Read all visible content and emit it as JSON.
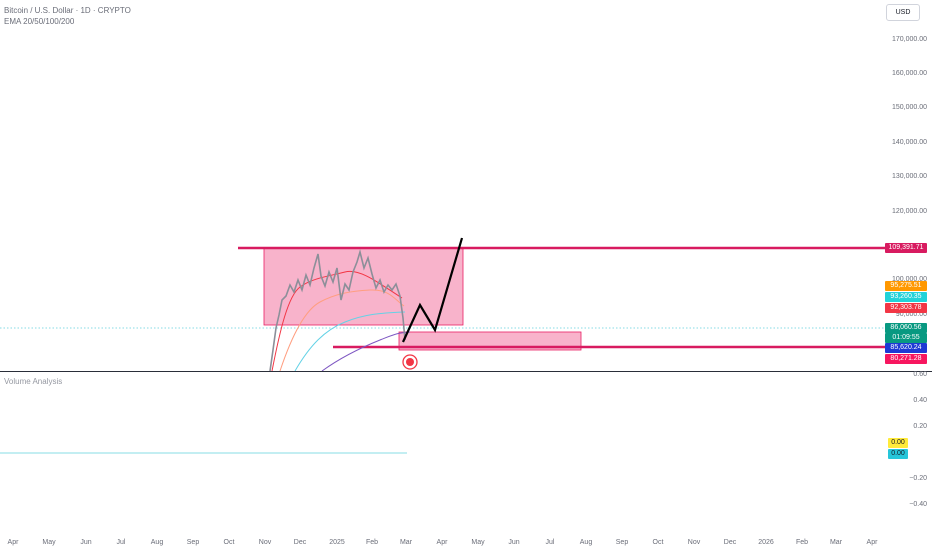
{
  "header": {
    "symbol_title": "Bitcoin / U.S. Dollar · 1D · CRYPTO",
    "indicator": "EMA 20/50/100/200"
  },
  "currency_button": "USD",
  "price_axis": {
    "ticks": [
      "170,000.00",
      "160,000.00",
      "150,000.00",
      "140,000.00",
      "130,000.00",
      "120,000.00",
      "100,000.00",
      "90,000.00"
    ],
    "tags": {
      "resistance": "109,391.71",
      "ema20": "95,275.51",
      "ema50": "93,260.35",
      "ema100": "92,303.78",
      "last_price": "86,060.56",
      "countdown": "01:09:55",
      "support": "85,620.24",
      "ema200": "80,271.28"
    }
  },
  "volume_pane": {
    "title": "Volume Analysis",
    "ticks": [
      "0.60",
      "0.40",
      "0.20",
      "−0.20",
      "−0.40"
    ],
    "tags": [
      "0.00",
      "0.00"
    ]
  },
  "time_axis": [
    "Apr",
    "May",
    "Jun",
    "Jul",
    "Aug",
    "Sep",
    "Oct",
    "Nov",
    "Dec",
    "2025",
    "Feb",
    "Mar",
    "Apr",
    "May",
    "Jun",
    "Jul",
    "Aug",
    "Sep",
    "Oct",
    "Nov",
    "Dec",
    "2026",
    "Feb",
    "Mar",
    "Apr"
  ],
  "colors": {
    "box_fill": "#f7a6c2",
    "box_border": "#e91e63",
    "line_magenta": "#d81b60",
    "ema20": "#f23645",
    "ema50": "#ff9e80",
    "ema100": "#64d2e6",
    "ema200": "#7e57c2",
    "last_price_green": "#089981",
    "support_blue": "#1e3ad4",
    "ema200_tag": "#f7165f"
  }
}
